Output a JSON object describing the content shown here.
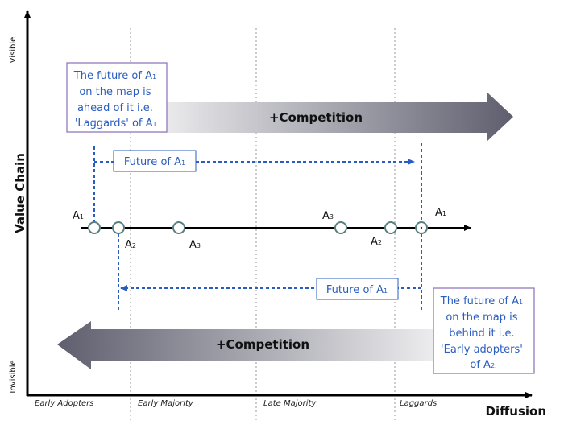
{
  "axes": {
    "y_title": "Value Chain",
    "y_top": "Visible",
    "y_bottom": "Invisible",
    "x_title": "Diffusion",
    "x_ticks": [
      "Early Adopters",
      "Early Majority",
      "Late Majority",
      "Laggards"
    ]
  },
  "arrows": {
    "top": "+Competition",
    "bottom": "+Competition"
  },
  "callouts": {
    "top_left": [
      "The future of A",
      "on the map is",
      "ahead of it i.e.",
      "'Laggards' of A"
    ],
    "top_left_subs": [
      "1",
      "1."
    ],
    "bottom_right": [
      "The future of A",
      "on the map is",
      "behind it i.e.",
      "'Early adopters'",
      "of A"
    ],
    "bottom_right_subs": [
      "1",
      "2."
    ]
  },
  "future_labels": {
    "top": "Future of A",
    "bottom": "Future of A",
    "sub": "1"
  },
  "points": [
    {
      "name": "A",
      "sub": "1"
    },
    {
      "name": "A",
      "sub": "2"
    },
    {
      "name": "A",
      "sub": "3"
    },
    {
      "name": "A",
      "sub": "3"
    },
    {
      "name": "A",
      "sub": "2"
    },
    {
      "name": "A",
      "sub": "1"
    }
  ],
  "colors": {
    "accent_blue": "#2a5dbf",
    "callout_border": "#8a6fb8",
    "node_stroke": "#5a7f7f",
    "arrow_dark": "#5e5e6e",
    "arrow_light": "#ececee"
  }
}
